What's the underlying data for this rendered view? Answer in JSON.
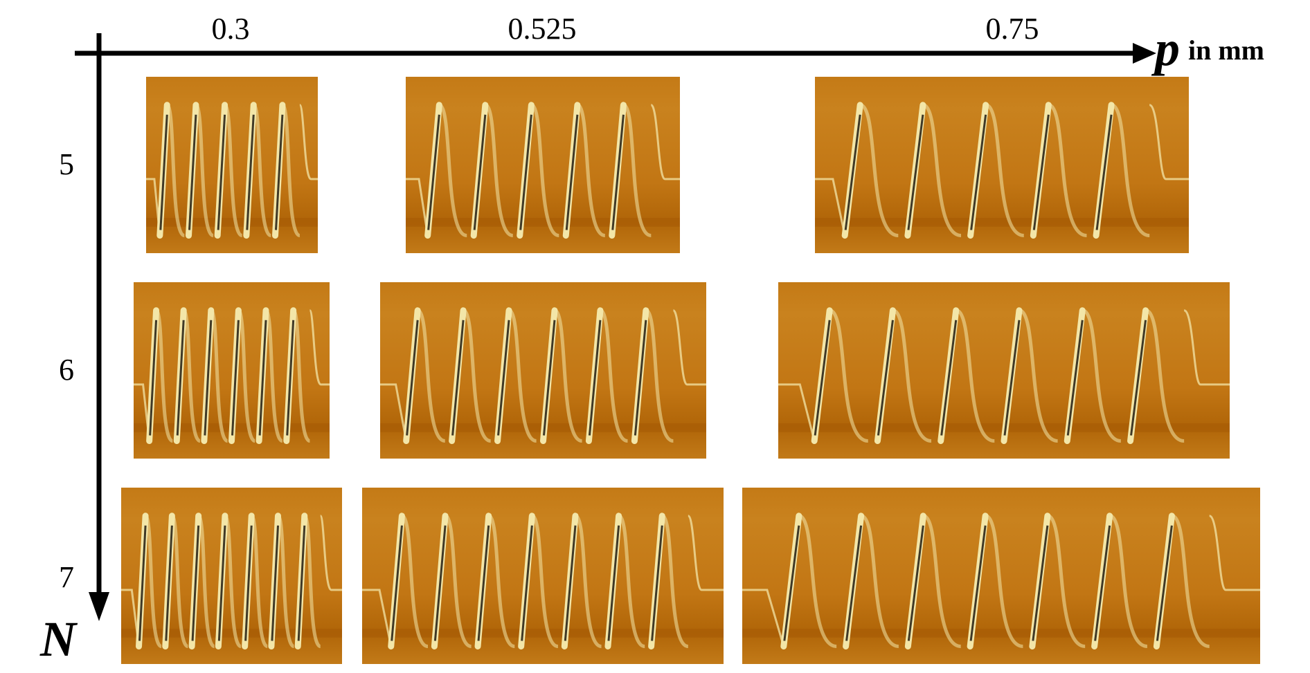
{
  "x_axis": {
    "symbol": "p",
    "unit": "in mm",
    "ticks": [
      "0.3",
      "0.525",
      "0.75"
    ]
  },
  "y_axis": {
    "symbol": "N",
    "ticks": [
      "5",
      "6",
      "7"
    ]
  },
  "colors": {
    "axis": "#000000",
    "tube_orange": "#c47a16",
    "wire_light": "#f3e6a8",
    "wire_dark": "#1f1a10"
  },
  "panels": [
    {
      "pitch_mm": 0.3,
      "turns": 5
    },
    {
      "pitch_mm": 0.525,
      "turns": 5
    },
    {
      "pitch_mm": 0.75,
      "turns": 5
    },
    {
      "pitch_mm": 0.3,
      "turns": 6
    },
    {
      "pitch_mm": 0.525,
      "turns": 6
    },
    {
      "pitch_mm": 0.75,
      "turns": 6
    },
    {
      "pitch_mm": 0.3,
      "turns": 7
    },
    {
      "pitch_mm": 0.525,
      "turns": 7
    },
    {
      "pitch_mm": 0.75,
      "turns": 7
    }
  ]
}
